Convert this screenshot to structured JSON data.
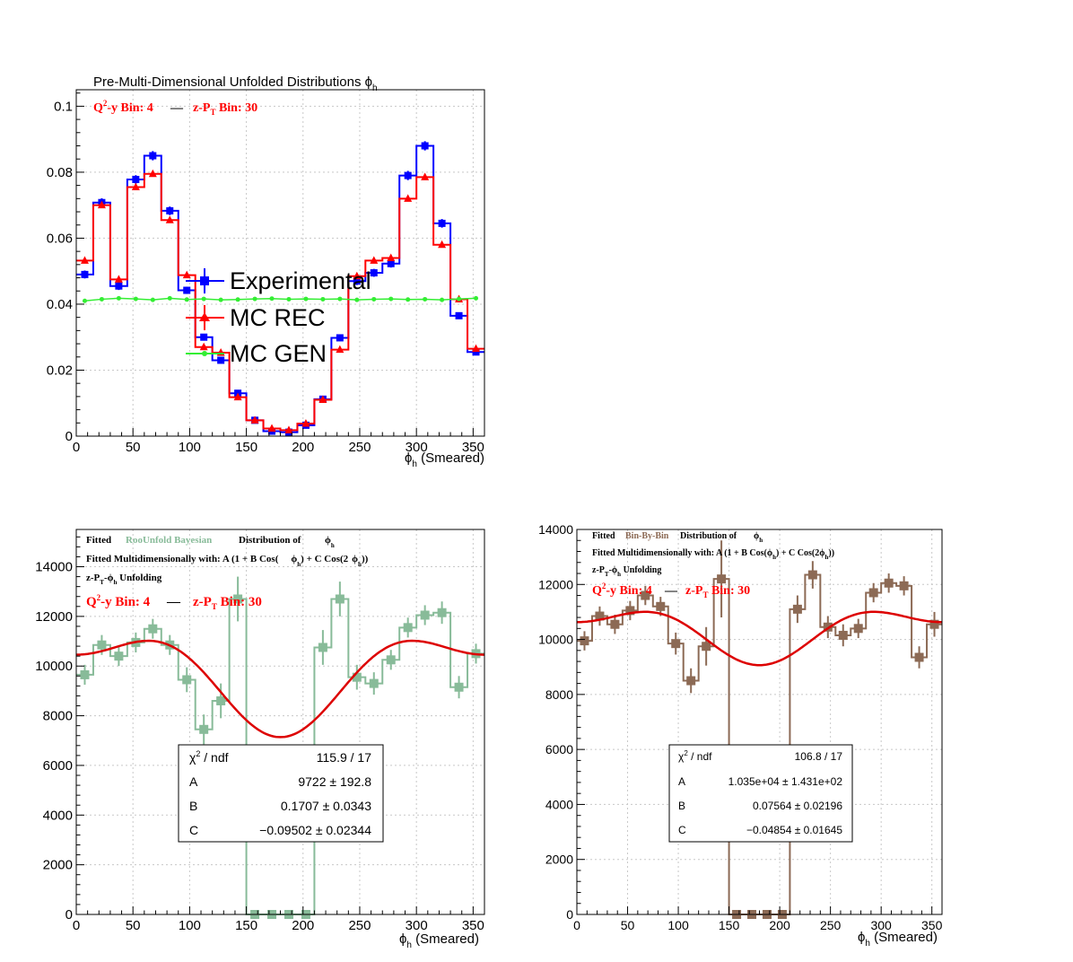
{
  "colors": {
    "experimental": "#0000ff",
    "mc_rec": "#ff0000",
    "mc_gen": "#33ee33",
    "bayesian": "#88bb99",
    "bin_by_bin": "#8c6a55",
    "fit": "#dd0000",
    "grid": "#c8c8c8"
  },
  "chart_data": [
    {
      "type": "line",
      "title": "Pre-Multi-Dimensional Unfolded Distributions",
      "title_symbol": "ϕ",
      "title_sub": "h",
      "bin_label": {
        "q2y": "Q",
        "q2y_sup": "2",
        "q2y_rest": "-y Bin: 4",
        "dash": "—",
        "zpt": "z-P",
        "zpt_sub": "T",
        "zpt_rest": " Bin: 30"
      },
      "xlabel_symbol": "ϕ",
      "xlabel_sub": "h",
      "xlabel_rest": " (Smeared)",
      "xlim": [
        0,
        360
      ],
      "ylim": [
        0,
        0.105
      ],
      "x_ticks": [
        "0",
        "50",
        "100",
        "150",
        "200",
        "250",
        "300",
        "350"
      ],
      "x_tick_values": [
        0,
        50,
        100,
        150,
        200,
        250,
        300,
        350
      ],
      "y_ticks": [
        "0",
        "0.02",
        "0.04",
        "0.06",
        "0.08",
        "0.1"
      ],
      "y_tick_values": [
        0,
        0.02,
        0.04,
        0.06,
        0.08,
        0.1
      ],
      "grid": true,
      "bin_edges": [
        0,
        15,
        30,
        45,
        60,
        75,
        90,
        105,
        120,
        135,
        150,
        165,
        180,
        195,
        210,
        225,
        240,
        255,
        270,
        285,
        300,
        315,
        330,
        345,
        360
      ],
      "series": [
        {
          "name": "Experimental",
          "style": "hist-square",
          "values": [
            0.049,
            0.0708,
            0.0455,
            0.0778,
            0.085,
            0.0683,
            0.0442,
            0.03,
            0.023,
            0.013,
            0.0048,
            0.0015,
            0.0012,
            0.0033,
            0.0112,
            0.0298,
            0.047,
            0.0495,
            0.0523,
            0.079,
            0.088,
            0.0645,
            0.0365,
            0.0255
          ],
          "errors": [
            0.0012,
            0.0013,
            0.0012,
            0.0013,
            0.0014,
            0.0013,
            0.0011,
            0.001,
            0.0009,
            0.0007,
            0.0004,
            0.0003,
            0.0003,
            0.0004,
            0.0007,
            0.001,
            0.0012,
            0.0012,
            0.0012,
            0.0014,
            0.0014,
            0.0013,
            0.001,
            0.0009
          ]
        },
        {
          "name": "MC REC",
          "style": "hist-triangle",
          "values": [
            0.0532,
            0.07,
            0.0475,
            0.0755,
            0.0795,
            0.0655,
            0.0488,
            0.027,
            0.0253,
            0.0118,
            0.0048,
            0.0023,
            0.0018,
            0.0038,
            0.011,
            0.0262,
            0.0485,
            0.0532,
            0.054,
            0.072,
            0.0785,
            0.058,
            0.0415,
            0.0265
          ],
          "errors": [
            0.0005,
            0.0005,
            0.0005,
            0.0005,
            0.0005,
            0.0005,
            0.0005,
            0.0004,
            0.0004,
            0.0003,
            0.0002,
            0.0002,
            0.0002,
            0.0002,
            0.0003,
            0.0004,
            0.0005,
            0.0005,
            0.0005,
            0.0005,
            0.0005,
            0.0005,
            0.0005,
            0.0004
          ]
        },
        {
          "name": "MC GEN",
          "style": "line-circle",
          "values": [
            0.041,
            0.0415,
            0.0418,
            0.0416,
            0.0413,
            0.0418,
            0.0414,
            0.0416,
            0.0413,
            0.0414,
            0.0416,
            0.0417,
            0.0415,
            0.0416,
            0.0415,
            0.0416,
            0.0413,
            0.0415,
            0.0416,
            0.0414,
            0.0415,
            0.0413,
            0.0416,
            0.0418
          ]
        }
      ],
      "legend": {
        "placement": "center",
        "entries": [
          "Experimental",
          "MC REC",
          "MC GEN"
        ]
      }
    },
    {
      "type": "line",
      "header_lines": {
        "l1_a": "Fitted",
        "l1_b": "RooUnfold Bayesian",
        "l1_c": "Distribution of",
        "l2_a": "Fitted Multidimensionally with: A (1 + B Cos(",
        "l2_b": ") + C Cos(2",
        "l2_c": "))",
        "l3_a": "z-P",
        "l3_b": "-",
        "l3_c": " Unfolding",
        "sym": "ϕ",
        "sub_h": "h",
        "sub_t": "T"
      },
      "bin_label": {
        "q2y": "Q",
        "q2y_sup": "2",
        "q2y_rest": "-y Bin: 4",
        "dash": "—",
        "zpt": "z-P",
        "zpt_sub": "T",
        "zpt_rest": " Bin: 30"
      },
      "xlabel_symbol": "ϕ",
      "xlabel_sub": "h",
      "xlabel_rest": " (Smeared)",
      "xlim": [
        0,
        360
      ],
      "ylim": [
        0,
        15500
      ],
      "x_ticks": [
        "0",
        "50",
        "100",
        "150",
        "200",
        "250",
        "300",
        "350"
      ],
      "x_tick_values": [
        0,
        50,
        100,
        150,
        200,
        250,
        300,
        350
      ],
      "y_ticks": [
        "0",
        "2000",
        "4000",
        "6000",
        "8000",
        "10000",
        "12000",
        "14000"
      ],
      "y_tick_values": [
        0,
        2000,
        4000,
        6000,
        8000,
        10000,
        12000,
        14000
      ],
      "grid": true,
      "bin_edges": [
        0,
        15,
        30,
        45,
        60,
        75,
        90,
        105,
        120,
        135,
        150,
        165,
        180,
        195,
        210,
        225,
        240,
        255,
        270,
        285,
        300,
        315,
        330,
        345,
        360
      ],
      "series": [
        {
          "name": "RooUnfold Bayesian",
          "style": "hist-square",
          "values": [
            9650,
            10850,
            10400,
            10950,
            11500,
            10850,
            9450,
            7450,
            8600,
            12700,
            0,
            0,
            0,
            0,
            10750,
            12700,
            9550,
            9300,
            10250,
            11550,
            12050,
            12150,
            9150,
            10500
          ],
          "errors": [
            400,
            400,
            400,
            400,
            400,
            400,
            500,
            600,
            700,
            900,
            0,
            0,
            0,
            0,
            700,
            700,
            500,
            450,
            400,
            400,
            400,
            450,
            450,
            400
          ]
        }
      ],
      "fit": {
        "A": 9722,
        "B": 0.1707,
        "C": -0.09502
      },
      "stats": {
        "chi_label": "χ",
        "chi_sup": "2",
        "chi_rest": " / ndf",
        "chi_value": "115.9 / 17",
        "A_label": "A",
        "A_value": "9722 ± 192.8",
        "B_label": "B",
        "B_value": "0.1707 ± 0.0343",
        "C_label": "C",
        "C_value": "−0.09502 ± 0.02344"
      }
    },
    {
      "type": "line",
      "header_lines": {
        "l1_a": "Fitted",
        "l1_b": "Bin-By-Bin",
        "l1_c": "Distribution of",
        "l2_a": "Fitted Multidimensionally with: A (1 + B Cos(",
        "l2_b": ") + C Cos(2",
        "l2_c": "))",
        "l3_a": "z-P",
        "l3_b": "-",
        "l3_c": " Unfolding",
        "sym": "ϕ",
        "sub_h": "h",
        "sub_t": "T"
      },
      "bin_label": {
        "q2y": "Q",
        "q2y_sup": "2",
        "q2y_rest": "-y Bin: 4",
        "dash": "—",
        "zpt": "z-P",
        "zpt_sub": "T",
        "zpt_rest": " Bin: 30"
      },
      "xlabel_symbol": "ϕ",
      "xlabel_sub": "h",
      "xlabel_rest": " (Smeared)",
      "xlim": [
        0,
        360
      ],
      "ylim": [
        0,
        14000
      ],
      "x_ticks": [
        "0",
        "50",
        "100",
        "150",
        "200",
        "250",
        "300",
        "350"
      ],
      "x_tick_values": [
        0,
        50,
        100,
        150,
        200,
        250,
        300,
        350
      ],
      "y_ticks": [
        "0",
        "2000",
        "4000",
        "6000",
        "8000",
        "10000",
        "12000",
        "14000"
      ],
      "y_tick_values": [
        0,
        2000,
        4000,
        6000,
        8000,
        10000,
        12000,
        14000
      ],
      "grid": true,
      "bin_edges": [
        0,
        15,
        30,
        45,
        60,
        75,
        90,
        105,
        120,
        135,
        150,
        165,
        180,
        195,
        210,
        225,
        240,
        255,
        270,
        285,
        300,
        315,
        330,
        345,
        360
      ],
      "series": [
        {
          "name": "Bin-By-Bin",
          "style": "hist-square",
          "values": [
            9950,
            10850,
            10550,
            11050,
            11600,
            11200,
            9850,
            8500,
            9750,
            12200,
            0,
            0,
            0,
            0,
            11100,
            12350,
            10450,
            10150,
            10400,
            11700,
            12050,
            11950,
            9350,
            10550
          ],
          "errors": [
            350,
            350,
            350,
            350,
            350,
            350,
            400,
            450,
            700,
            1400,
            0,
            0,
            0,
            0,
            500,
            500,
            400,
            400,
            350,
            350,
            350,
            350,
            400,
            450
          ]
        }
      ],
      "fit": {
        "A": 10350,
        "B": 0.07564,
        "C": -0.04854
      },
      "stats": {
        "chi_label": "χ",
        "chi_sup": "2",
        "chi_rest": " / ndf",
        "chi_value": "106.8 / 17",
        "A_label": "A",
        "A_value": "1.035e+04 ± 1.431e+02",
        "B_label": "B",
        "B_value": "0.07564 ± 0.02196",
        "C_label": "C",
        "C_value": "−0.04854 ± 0.01645"
      }
    }
  ]
}
